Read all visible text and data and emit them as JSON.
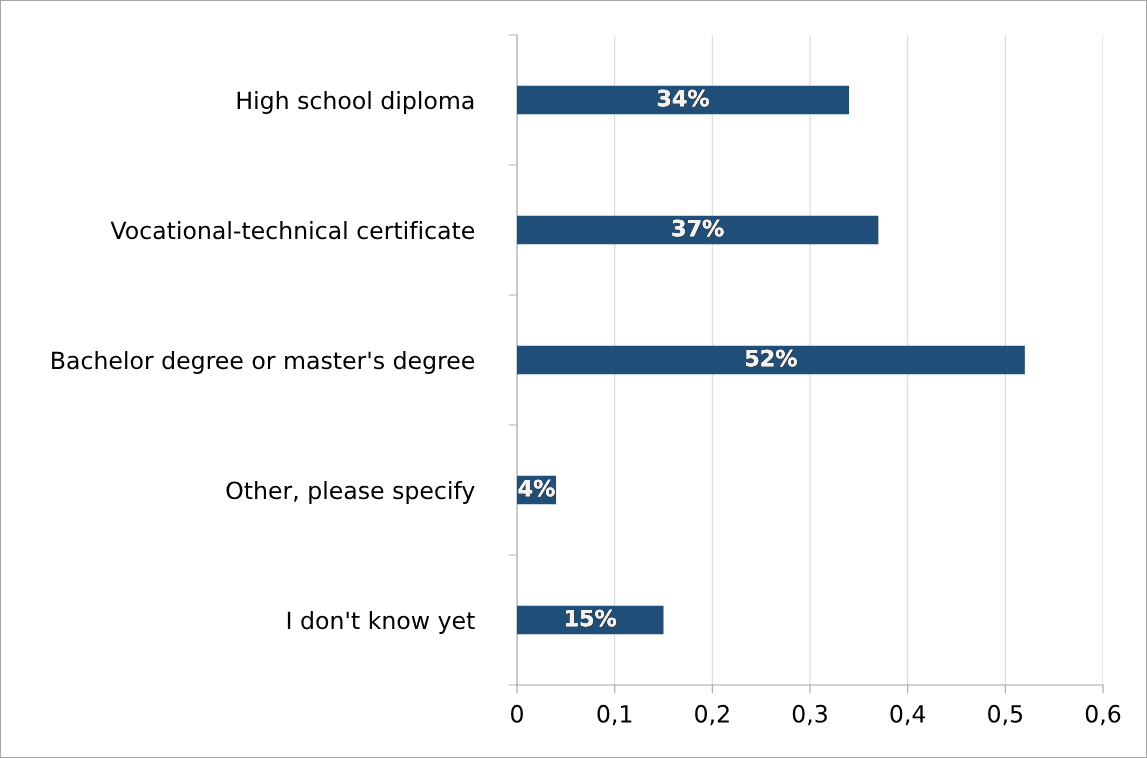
{
  "chart_data": {
    "type": "bar",
    "orientation": "horizontal",
    "categories": [
      "High school diploma",
      "Vocational-technical certificate",
      "Bachelor degree or master's degree",
      "Other, please specify",
      "I don't know yet"
    ],
    "values": [
      0.34,
      0.37,
      0.52,
      0.04,
      0.15
    ],
    "value_labels": [
      "34%",
      "37%",
      "52%",
      "4%",
      "15%"
    ],
    "color": "#1f4e79",
    "xlim": [
      0,
      0.6
    ],
    "xticks": [
      0,
      {
        "value": 0.1,
        "label": "0,1"
      },
      {
        "value": 0.2,
        "label": "0,2"
      },
      {
        "value": 0.3,
        "label": "0,3"
      },
      {
        "value": 0.4,
        "label": "0,4"
      },
      {
        "value": 0.5,
        "label": "0,5"
      },
      {
        "value": 0.6,
        "label": "0,6"
      }
    ],
    "grid": "x"
  }
}
